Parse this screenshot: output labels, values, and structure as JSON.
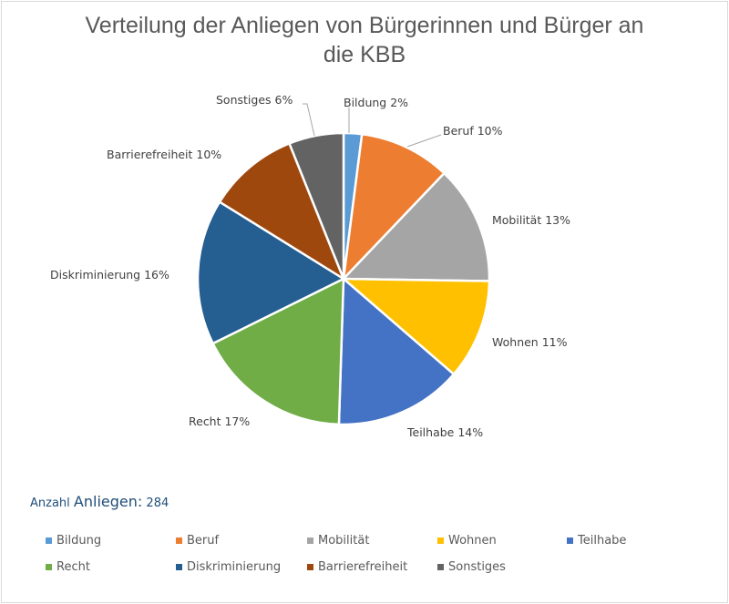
{
  "chart_data": {
    "type": "pie",
    "title": "Verteilung der Anliegen von Bürgerinnen und Bürger an die KBB",
    "title_lines": [
      "Verteilung der Anliegen von Bürgerinnen und Bürger an",
      "die KBB"
    ],
    "start_angle": "top, clockwise",
    "legend_placement": "bottom",
    "slices": [
      {
        "label": "Bildung",
        "value": 2,
        "data_label": "Bildung 2%",
        "color": "#5b9bd5"
      },
      {
        "label": "Beruf",
        "value": 10,
        "data_label": "Beruf 10%",
        "color": "#ed7d31"
      },
      {
        "label": "Mobilität",
        "value": 13,
        "data_label": "Mobilität 13%",
        "color": "#a5a5a5"
      },
      {
        "label": "Wohnen",
        "value": 11,
        "data_label": "Wohnen 11%",
        "color": "#ffc000"
      },
      {
        "label": "Teilhabe",
        "value": 14,
        "data_label": "Teilhabe 14%",
        "color": "#4472c4"
      },
      {
        "label": "Recht",
        "value": 17,
        "data_label": "Recht 17%",
        "color": "#70ad47"
      },
      {
        "label": "Diskriminierung",
        "value": 16,
        "data_label": "Diskriminierung 16%",
        "color": "#255e91"
      },
      {
        "label": "Barrierefreiheit",
        "value": 10,
        "data_label": "Barrierefreiheit 10%",
        "color": "#9e480e"
      },
      {
        "label": "Sonstiges",
        "value": 6,
        "data_label": "Sonstiges 6%",
        "color": "#636363"
      }
    ]
  },
  "note": {
    "prefix": "Anzahl",
    "label": "Anliegen:",
    "value": "284"
  }
}
